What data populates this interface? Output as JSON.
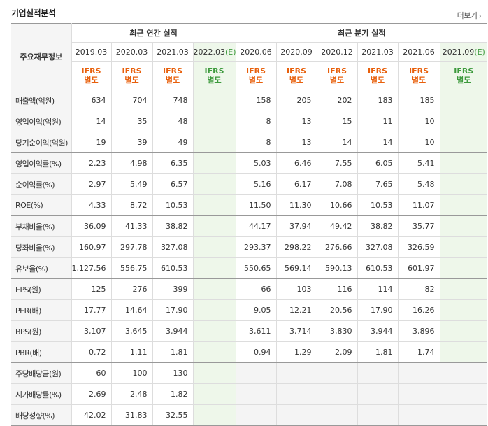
{
  "section_title": "기업실적분석",
  "more_label": "더보기",
  "more_icon": "chevron-right-icon",
  "row_header_label": "주요재무정보",
  "group_annual": "최근 연간 실적",
  "group_quarter": "최근 분기 실적",
  "columns": [
    {
      "period": "2019.03",
      "est": ""
    },
    {
      "period": "2020.03",
      "est": ""
    },
    {
      "period": "2021.03",
      "est": ""
    },
    {
      "period": "2022.03",
      "est": "(E)"
    },
    {
      "period": "2020.06",
      "est": ""
    },
    {
      "period": "2020.09",
      "est": ""
    },
    {
      "period": "2020.12",
      "est": ""
    },
    {
      "period": "2021.03",
      "est": ""
    },
    {
      "period": "2021.06",
      "est": ""
    },
    {
      "period": "2021.09",
      "est": "(E)"
    }
  ],
  "ifrs_line1": "IFRS",
  "ifrs_line2": "별도",
  "rows": [
    {
      "label": "매출액(억원)",
      "values": [
        "634",
        "704",
        "748",
        "",
        "158",
        "205",
        "202",
        "183",
        "185",
        ""
      ]
    },
    {
      "label": "영업이익(억원)",
      "values": [
        "14",
        "35",
        "48",
        "",
        "8",
        "13",
        "15",
        "11",
        "10",
        ""
      ]
    },
    {
      "label": "당기순이익(억원)",
      "values": [
        "19",
        "39",
        "49",
        "",
        "8",
        "13",
        "14",
        "14",
        "10",
        ""
      ]
    },
    {
      "label": "영업이익률(%)",
      "values": [
        "2.23",
        "4.98",
        "6.35",
        "",
        "5.03",
        "6.46",
        "7.55",
        "6.05",
        "5.41",
        ""
      ]
    },
    {
      "label": "순이익률(%)",
      "values": [
        "2.97",
        "5.49",
        "6.57",
        "",
        "5.16",
        "6.17",
        "7.08",
        "7.65",
        "5.48",
        ""
      ]
    },
    {
      "label": "ROE(%)",
      "values": [
        "4.33",
        "8.72",
        "10.53",
        "",
        "11.50",
        "11.30",
        "10.66",
        "10.53",
        "11.07",
        ""
      ]
    },
    {
      "label": "부채비율(%)",
      "values": [
        "36.09",
        "41.33",
        "38.82",
        "",
        "44.17",
        "37.94",
        "49.42",
        "38.82",
        "35.77",
        ""
      ]
    },
    {
      "label": "당좌비율(%)",
      "values": [
        "160.97",
        "297.78",
        "327.08",
        "",
        "293.37",
        "298.22",
        "276.66",
        "327.08",
        "326.59",
        ""
      ]
    },
    {
      "label": "유보율(%)",
      "values": [
        "1,127.56",
        "556.75",
        "610.53",
        "",
        "550.65",
        "569.14",
        "590.13",
        "610.53",
        "601.97",
        ""
      ]
    },
    {
      "label": "EPS(원)",
      "values": [
        "125",
        "276",
        "399",
        "",
        "66",
        "103",
        "116",
        "114",
        "82",
        ""
      ]
    },
    {
      "label": "PER(배)",
      "values": [
        "17.77",
        "14.64",
        "17.90",
        "",
        "9.05",
        "12.21",
        "20.56",
        "17.90",
        "16.26",
        ""
      ]
    },
    {
      "label": "BPS(원)",
      "values": [
        "3,107",
        "3,645",
        "3,944",
        "",
        "3,611",
        "3,714",
        "3,830",
        "3,944",
        "3,896",
        ""
      ]
    },
    {
      "label": "PBR(배)",
      "values": [
        "0.72",
        "1.11",
        "1.81",
        "",
        "0.94",
        "1.29",
        "2.09",
        "1.81",
        "1.74",
        ""
      ]
    },
    {
      "label": "주당배당금(원)",
      "values": [
        "60",
        "100",
        "130",
        "",
        "",
        "",
        "",
        "",
        "",
        ""
      ]
    },
    {
      "label": "시가배당률(%)",
      "values": [
        "2.69",
        "2.48",
        "1.82",
        "",
        "",
        "",
        "",
        "",
        "",
        ""
      ]
    },
    {
      "label": "배당성향(%)",
      "values": [
        "42.02",
        "31.83",
        "32.55",
        "",
        "",
        "",
        "",
        "",
        "",
        ""
      ]
    }
  ],
  "colors": {
    "ifrs": "#e8600c",
    "estimate": "#3d9a3d",
    "estimate_bg": "#eef7ea"
  }
}
